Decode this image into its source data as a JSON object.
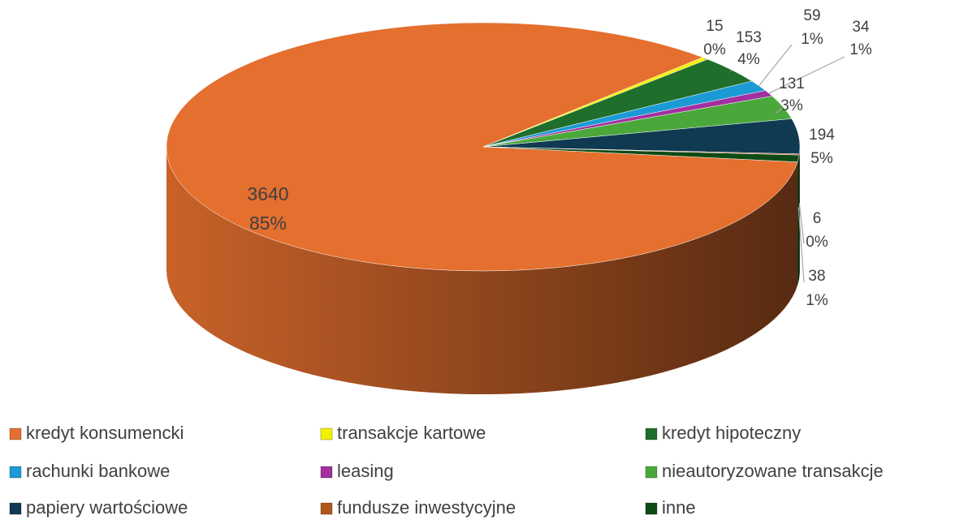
{
  "chart_data": {
    "type": "pie3d",
    "categories": [
      "kredyt konsumencki",
      "transakcje kartowe",
      "kredyt hipoteczny",
      "rachunki bankowe",
      "leasing",
      "nieautoryzowane transakcje",
      "papiery wartościowe",
      "fundusze inwestycyjne",
      "inne"
    ],
    "values": [
      3640,
      15,
      153,
      59,
      34,
      131,
      194,
      6,
      38
    ],
    "percent_labels": [
      "85%",
      "0%",
      "4%",
      "1%",
      "1%",
      "3%",
      "5%",
      "0%",
      "1%"
    ],
    "colors": [
      "#e46f2e",
      "#f2f200",
      "#1f6e2b",
      "#1b9ad6",
      "#a3309f",
      "#4aa83a",
      "#0f3a52",
      "#b0561c",
      "#0d4a15"
    ],
    "legend": "bottom"
  }
}
